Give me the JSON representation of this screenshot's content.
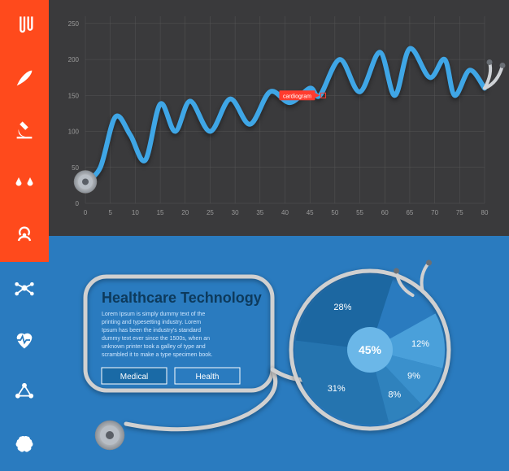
{
  "sidebar": {
    "bg_colors": [
      "#ff4a1c",
      "#ff4a1c",
      "#ff4a1c",
      "#ff4a1c",
      "#ff4a1c",
      "#2a7bbf",
      "#2a7bbf",
      "#2a7bbf",
      "#2a7bbf"
    ],
    "icons": [
      "test-tubes",
      "feather",
      "microscope",
      "scales",
      "biohazard",
      "molecule",
      "heartbeat",
      "molecule-2",
      "brain"
    ]
  },
  "line_chart": {
    "background_color": "#3a3a3c",
    "grid_color": "#555555",
    "tick_label_color": "#9a9a9a",
    "tick_fontsize": 8,
    "x_ticks": [
      0,
      5,
      10,
      15,
      20,
      25,
      30,
      35,
      40,
      45,
      50,
      55,
      60,
      65,
      70,
      75,
      80
    ],
    "y_ticks": [
      0,
      50,
      100,
      150,
      200,
      250
    ],
    "xlim": [
      0,
      80
    ],
    "ylim": [
      0,
      260
    ],
    "line_color": "#3fa6e6",
    "line_width": 6,
    "callout": {
      "x": 47,
      "y": 150,
      "label": "cardiogram",
      "bg": "#ff3b2e",
      "text_color": "#ffffff"
    },
    "path_points": [
      [
        0,
        30
      ],
      [
        3,
        50
      ],
      [
        6,
        120
      ],
      [
        9,
        95
      ],
      [
        12,
        60
      ],
      [
        15,
        138
      ],
      [
        18,
        100
      ],
      [
        21,
        142
      ],
      [
        25,
        100
      ],
      [
        29,
        145
      ],
      [
        33,
        110
      ],
      [
        37,
        155
      ],
      [
        41,
        140
      ],
      [
        45,
        160
      ],
      [
        47,
        150
      ],
      [
        51,
        200
      ],
      [
        55,
        155
      ],
      [
        59,
        210
      ],
      [
        62,
        150
      ],
      [
        65,
        215
      ],
      [
        69,
        175
      ],
      [
        72,
        200
      ],
      [
        74,
        150
      ],
      [
        77,
        185
      ],
      [
        80,
        160
      ]
    ],
    "earpiece_color": "#cfd2d6",
    "chestpiece_gradient": [
      "#f5f5f5",
      "#9aa0a6"
    ]
  },
  "bottom": {
    "background_color": "#2a7bbf",
    "title": "Healthcare Technology",
    "title_color": "#0d3a5c",
    "body_text": "Lorem Ipsum is simply dummy text of the printing and typesetting industry. Lorem Ipsum has been the industry's standard dummy text ever since the 1500s, when an unknown printer took a galley of type and scrambled it to make a type specimen book.",
    "body_color": "#cfe7ff",
    "buttons": [
      {
        "label": "Medical",
        "fill": "#1a6aa6"
      },
      {
        "label": "Health",
        "fill": "transparent"
      }
    ],
    "stethoscope_tube_color": "#d0d0d0",
    "frame_radius": 26
  },
  "pie": {
    "cx_offset": 395,
    "cy_offset": 140,
    "radius": 92,
    "slices": [
      {
        "value": 12,
        "color": "#4aa0da",
        "label": "12%"
      },
      {
        "value": 9,
        "color": "#3a90cc",
        "label": "9%"
      },
      {
        "value": 8,
        "color": "#2f82bd",
        "label": "8%"
      },
      {
        "value": 31,
        "color": "#2574af",
        "label": "31%"
      },
      {
        "value": 28,
        "color": "#1c67a1",
        "label": "28%"
      }
    ],
    "gap_start_deg": -72,
    "gap_span_deg": 43,
    "center_circle_color": "#6bb7e8",
    "center_label": "45%",
    "label_fontsize": 11
  }
}
